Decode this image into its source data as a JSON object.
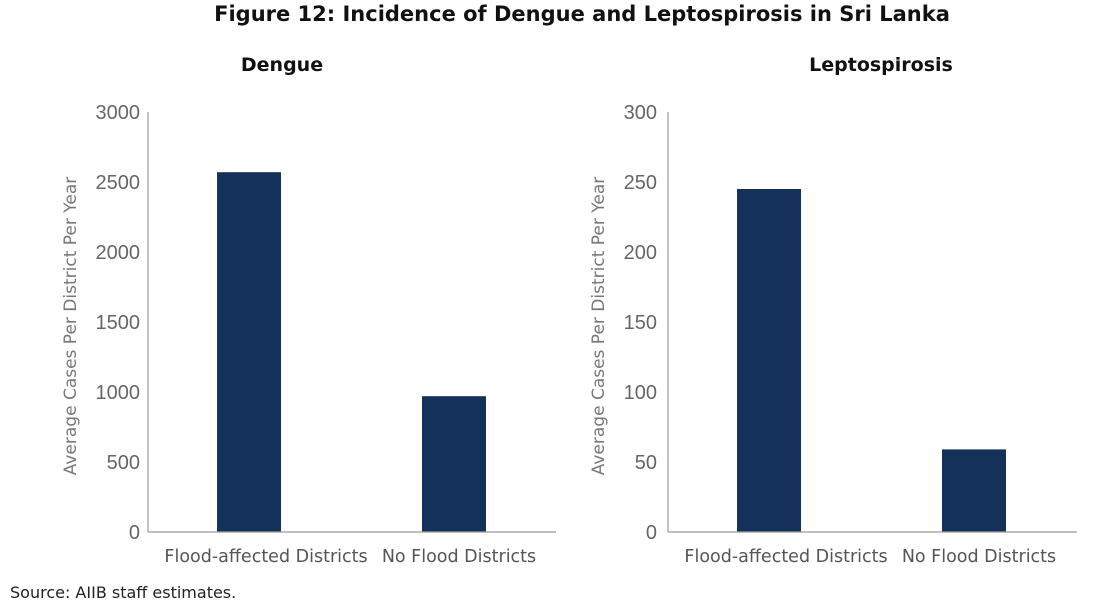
{
  "figure": {
    "title": "Figure 12: Incidence of Dengue and Leptospirosis in Sri Lanka",
    "source": "Source: AIIB staff estimates."
  },
  "colors": {
    "bar": "#14315a",
    "axis": "#9a9a9a"
  },
  "chart_data": [
    {
      "type": "bar",
      "title": "Dengue",
      "categories": [
        "Flood-affected Districts",
        "No Flood Districts"
      ],
      "values": [
        2570,
        970
      ],
      "ylabel": "Average Cases Per District Per Year",
      "xlabel": "",
      "ylim": [
        0,
        3000
      ],
      "yticks": [
        0,
        500,
        1000,
        1500,
        2000,
        2500,
        3000
      ],
      "grid": false,
      "legend": "none"
    },
    {
      "type": "bar",
      "title": "Leptospirosis",
      "categories": [
        "Flood-affected Districts",
        "No Flood Districts"
      ],
      "values": [
        245,
        59
      ],
      "ylabel": "Average Cases Per District Per Year",
      "xlabel": "",
      "ylim": [
        0,
        300
      ],
      "yticks": [
        0,
        50,
        100,
        150,
        200,
        250,
        300
      ],
      "grid": false,
      "legend": "none"
    }
  ]
}
